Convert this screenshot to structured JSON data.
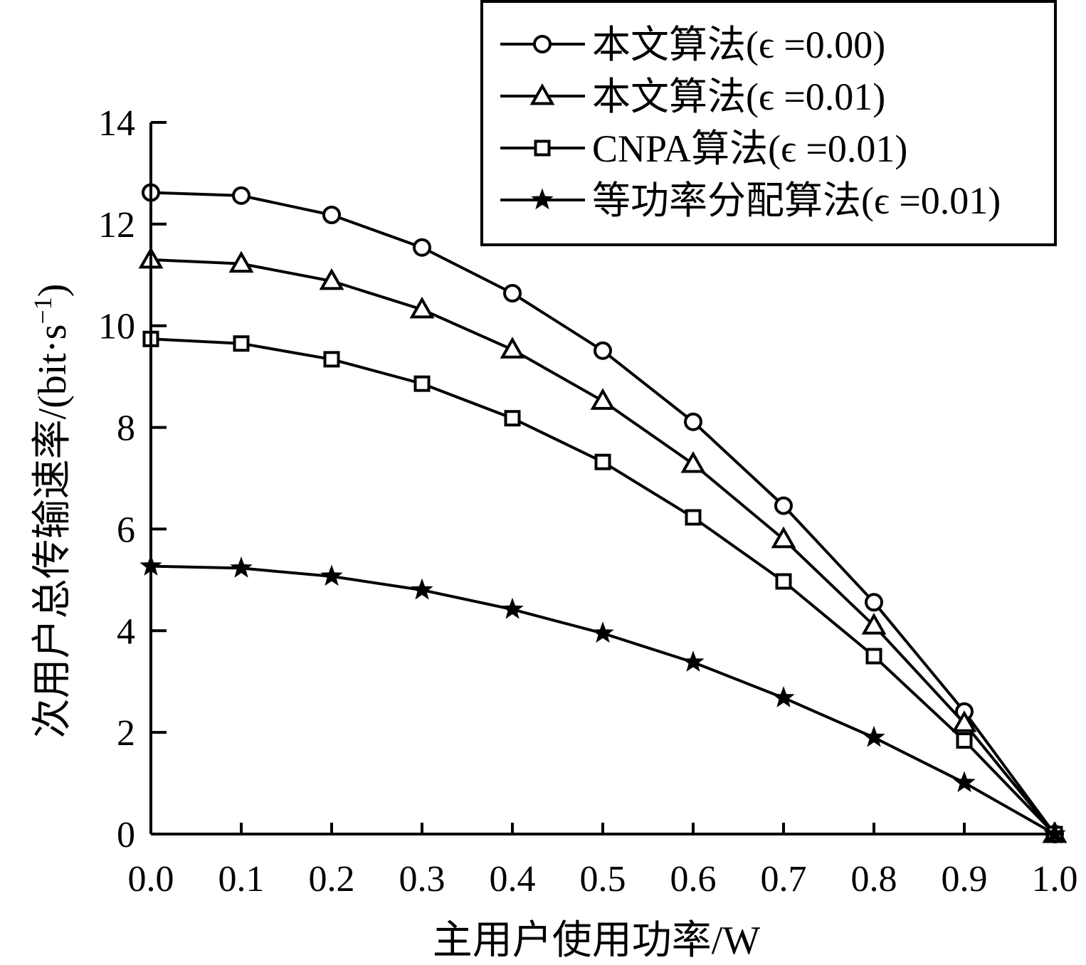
{
  "chart_data": {
    "type": "line",
    "xlabel": "主用户使用功率/W",
    "ylabel_main": "次用户总传输速率/(bit·s",
    "ylabel_sup": "−1",
    "ylabel_close": ")",
    "xlim": [
      0.0,
      1.0
    ],
    "ylim": [
      0,
      14
    ],
    "xticks": [
      "0.0",
      "0.1",
      "0.2",
      "0.3",
      "0.4",
      "0.5",
      "0.6",
      "0.7",
      "0.8",
      "0.9",
      "1.0"
    ],
    "yticks": [
      "0",
      "2",
      "4",
      "6",
      "8",
      "10",
      "12",
      "14"
    ],
    "x": [
      0.0,
      0.1,
      0.2,
      0.3,
      0.4,
      0.5,
      0.6,
      0.7,
      0.8,
      0.9,
      1.0
    ],
    "legend_placement": "top-right",
    "grid": false,
    "series": [
      {
        "name": "本文算法(ϵ =0.00)",
        "marker": "circle",
        "values": [
          12.62,
          12.56,
          12.18,
          11.54,
          10.64,
          9.51,
          8.11,
          6.46,
          4.56,
          2.41,
          0.0
        ]
      },
      {
        "name": "本文算法(ϵ =0.01)",
        "marker": "triangle",
        "values": [
          11.3,
          11.22,
          10.88,
          10.32,
          9.53,
          8.52,
          7.28,
          5.8,
          4.1,
          2.18,
          0.0
        ]
      },
      {
        "name": "CNPA算法(ϵ =0.01)",
        "marker": "square",
        "values": [
          9.74,
          9.65,
          9.34,
          8.86,
          8.18,
          7.32,
          6.23,
          4.97,
          3.5,
          1.84,
          0.0
        ]
      },
      {
        "name": "等功率分配算法(ϵ =0.01)",
        "marker": "star",
        "values": [
          5.27,
          5.23,
          5.07,
          4.8,
          4.42,
          3.95,
          3.38,
          2.68,
          1.9,
          1.01,
          0.0
        ]
      }
    ]
  }
}
